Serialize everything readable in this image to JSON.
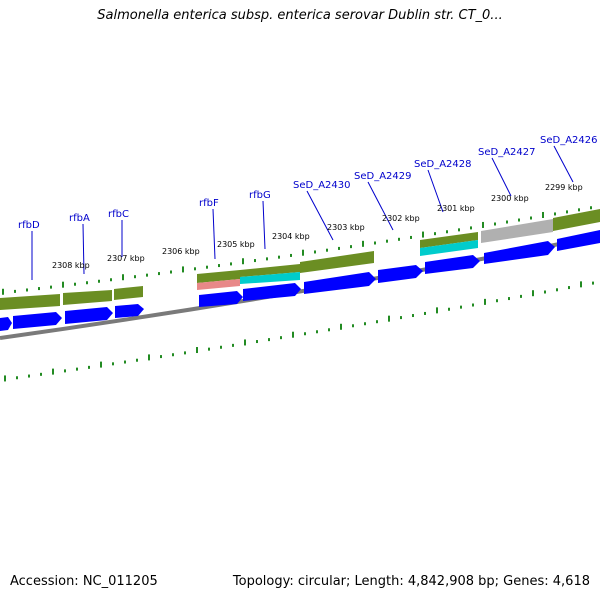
{
  "title": "Salmonella enterica subsp. enterica serovar Dublin str. CT_0...",
  "footer": {
    "accession": "Accession: NC_011205",
    "topology": "Topology: circular; Length: 4,842,908 bp; Genes: 4,618"
  },
  "colors": {
    "gene_label": "#0000cc",
    "cds_arrow": "#0000ff",
    "olive_bar": "#6b8e23",
    "cyan_bar": "#00cccc",
    "pink_bar": "#e88888",
    "grey_bar": "#b0b0b0",
    "tick": "#228b22",
    "backbone": "#808080"
  },
  "genes": [
    {
      "name": "rfbD"
    },
    {
      "name": "rfbA"
    },
    {
      "name": "rfbC"
    },
    {
      "name": "rfbF"
    },
    {
      "name": "rfbG"
    },
    {
      "name": "SeD_A2430"
    },
    {
      "name": "SeD_A2429"
    },
    {
      "name": "SeD_A2428"
    },
    {
      "name": "SeD_A2427"
    },
    {
      "name": "SeD_A2426"
    }
  ],
  "scale_ticks": [
    {
      "label": "2308 kbp"
    },
    {
      "label": "2307 kbp"
    },
    {
      "label": "2306 kbp"
    },
    {
      "label": "2305 kbp"
    },
    {
      "label": "2304 kbp"
    },
    {
      "label": "2303 kbp"
    },
    {
      "label": "2302 kbp"
    },
    {
      "label": "2301 kbp"
    },
    {
      "label": "2300 kbp"
    },
    {
      "label": "2299 kbp"
    }
  ]
}
